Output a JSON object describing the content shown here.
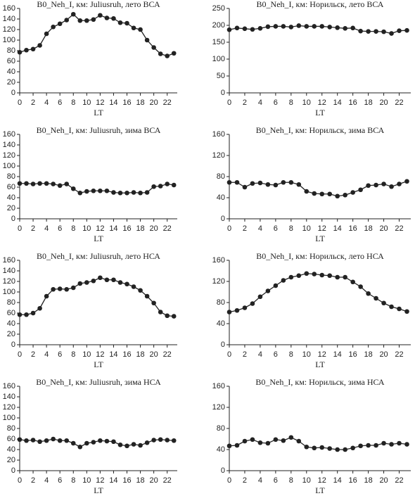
{
  "chart_data": [
    {
      "type": "line",
      "title": "B0_Neh_I, км: Juliusruh, лето ВСА",
      "x_label": "LT",
      "color": "#222222",
      "x": [
        0,
        1,
        2,
        3,
        4,
        5,
        6,
        7,
        8,
        9,
        10,
        11,
        12,
        13,
        14,
        15,
        16,
        17,
        18,
        19,
        20,
        21,
        22,
        23
      ],
      "values": [
        77,
        81,
        83,
        90,
        112,
        125,
        131,
        138,
        149,
        137,
        137,
        139,
        147,
        142,
        141,
        133,
        132,
        123,
        120,
        100,
        86,
        74,
        70,
        75
      ],
      "xlim": [
        0,
        23.5
      ],
      "xticks": [
        0,
        2,
        4,
        6,
        8,
        10,
        12,
        14,
        16,
        18,
        20,
        22
      ],
      "ylim": [
        0,
        160
      ],
      "yticks": [
        0,
        20,
        40,
        60,
        80,
        100,
        120,
        140,
        160
      ]
    },
    {
      "type": "line",
      "title": "B0_Neh_I, км: Норильск, лето ВСА",
      "x_label": "LT",
      "color": "#222222",
      "x": [
        0,
        1,
        2,
        3,
        4,
        5,
        6,
        7,
        8,
        9,
        10,
        11,
        12,
        13,
        14,
        15,
        16,
        17,
        18,
        19,
        20,
        21,
        22,
        23
      ],
      "values": [
        187,
        192,
        190,
        188,
        191,
        196,
        197,
        197,
        195,
        199,
        197,
        197,
        197,
        195,
        193,
        191,
        192,
        183,
        182,
        182,
        181,
        176,
        184,
        185
      ],
      "xlim": [
        0,
        23.5
      ],
      "xticks": [
        0,
        2,
        4,
        6,
        8,
        10,
        12,
        14,
        16,
        18,
        20,
        22
      ],
      "ylim": [
        0,
        250
      ],
      "yticks": [
        0,
        50,
        100,
        150,
        200,
        250
      ]
    },
    {
      "type": "line",
      "title": "B0_Neh_I, км: Juliusruh, зима ВСА",
      "x_label": "LT",
      "color": "#222222",
      "x": [
        0,
        1,
        2,
        3,
        4,
        5,
        6,
        7,
        8,
        9,
        10,
        11,
        12,
        13,
        14,
        15,
        16,
        17,
        18,
        19,
        20,
        21,
        22,
        23
      ],
      "values": [
        67,
        67,
        66,
        67,
        67,
        66,
        63,
        66,
        57,
        49,
        52,
        53,
        53,
        53,
        50,
        49,
        49,
        50,
        49,
        50,
        61,
        62,
        66,
        64
      ],
      "xlim": [
        0,
        23.5
      ],
      "xticks": [
        0,
        2,
        4,
        6,
        8,
        10,
        12,
        14,
        16,
        18,
        20,
        22
      ],
      "ylim": [
        0,
        160
      ],
      "yticks": [
        0,
        20,
        40,
        60,
        80,
        100,
        120,
        140,
        160
      ]
    },
    {
      "type": "line",
      "title": "B0_Neh_I, км: Норильск, зима ВСА",
      "x_label": "LT",
      "color": "#222222",
      "x": [
        0,
        1,
        2,
        3,
        4,
        5,
        6,
        7,
        8,
        9,
        10,
        11,
        12,
        13,
        14,
        15,
        16,
        17,
        18,
        19,
        20,
        21,
        22,
        23
      ],
      "values": [
        69,
        69,
        60,
        67,
        68,
        65,
        64,
        69,
        69,
        65,
        52,
        48,
        47,
        47,
        43,
        45,
        50,
        55,
        63,
        64,
        66,
        61,
        66,
        71
      ],
      "xlim": [
        0,
        23.5
      ],
      "xticks": [
        0,
        2,
        4,
        6,
        8,
        10,
        12,
        14,
        16,
        18,
        20,
        22
      ],
      "ylim": [
        0,
        160
      ],
      "yticks": [
        0,
        40,
        80,
        120,
        160
      ]
    },
    {
      "type": "line",
      "title": "B0_Neh_I, км: Juliusruh, лето НСА",
      "x_label": "LT",
      "color": "#222222",
      "x": [
        0,
        1,
        2,
        3,
        4,
        5,
        6,
        7,
        8,
        9,
        10,
        11,
        12,
        13,
        14,
        15,
        16,
        17,
        18,
        19,
        20,
        21,
        22,
        23
      ],
      "values": [
        57,
        57,
        60,
        69,
        92,
        105,
        106,
        105,
        108,
        116,
        118,
        121,
        127,
        123,
        123,
        118,
        115,
        110,
        103,
        92,
        79,
        62,
        55,
        54
      ],
      "xlim": [
        0,
        23.5
      ],
      "xticks": [
        0,
        2,
        4,
        6,
        8,
        10,
        12,
        14,
        16,
        18,
        20,
        22
      ],
      "ylim": [
        0,
        160
      ],
      "yticks": [
        0,
        20,
        40,
        60,
        80,
        100,
        120,
        140,
        160
      ]
    },
    {
      "type": "line",
      "title": "B0_Neh_I, км: Норильск, лето НСА",
      "x_label": "LT",
      "color": "#222222",
      "x": [
        0,
        1,
        2,
        3,
        4,
        5,
        6,
        7,
        8,
        9,
        10,
        11,
        12,
        13,
        14,
        15,
        16,
        17,
        18,
        19,
        20,
        21,
        22,
        23
      ],
      "values": [
        62,
        65,
        70,
        78,
        91,
        102,
        112,
        122,
        128,
        131,
        135,
        134,
        132,
        131,
        128,
        128,
        119,
        110,
        97,
        88,
        79,
        72,
        68,
        63
      ],
      "xlim": [
        0,
        23.5
      ],
      "xticks": [
        0,
        2,
        4,
        6,
        8,
        10,
        12,
        14,
        16,
        18,
        20,
        22
      ],
      "ylim": [
        0,
        160
      ],
      "yticks": [
        0,
        40,
        80,
        120,
        160
      ]
    },
    {
      "type": "line",
      "title": "B0_Neh_I, км: Juliusruh, зима НСА",
      "x_label": "LT",
      "color": "#222222",
      "x": [
        0,
        1,
        2,
        3,
        4,
        5,
        6,
        7,
        8,
        9,
        10,
        11,
        12,
        13,
        14,
        15,
        16,
        17,
        18,
        19,
        20,
        21,
        22,
        23
      ],
      "values": [
        59,
        57,
        58,
        55,
        57,
        60,
        57,
        57,
        52,
        45,
        52,
        54,
        57,
        56,
        55,
        49,
        47,
        50,
        48,
        53,
        58,
        59,
        58,
        57
      ],
      "xlim": [
        0,
        23.5
      ],
      "xticks": [
        0,
        2,
        4,
        6,
        8,
        10,
        12,
        14,
        16,
        18,
        20,
        22
      ],
      "ylim": [
        0,
        160
      ],
      "yticks": [
        0,
        20,
        40,
        60,
        80,
        100,
        120,
        140,
        160
      ]
    },
    {
      "type": "line",
      "title": "B0_Neh_I, км: Норильск, зима НСА",
      "x_label": "LT",
      "color": "#222222",
      "x": [
        0,
        1,
        2,
        3,
        4,
        5,
        6,
        7,
        8,
        9,
        10,
        11,
        12,
        13,
        14,
        15,
        16,
        17,
        18,
        19,
        20,
        21,
        22,
        23
      ],
      "values": [
        47,
        48,
        56,
        59,
        53,
        52,
        59,
        57,
        63,
        56,
        45,
        43,
        44,
        42,
        40,
        40,
        43,
        47,
        48,
        48,
        52,
        50,
        52,
        50
      ],
      "xlim": [
        0,
        23.5
      ],
      "xticks": [
        0,
        2,
        4,
        6,
        8,
        10,
        12,
        14,
        16,
        18,
        20,
        22
      ],
      "ylim": [
        0,
        160
      ],
      "yticks": [
        0,
        40,
        80,
        120,
        160
      ]
    }
  ]
}
